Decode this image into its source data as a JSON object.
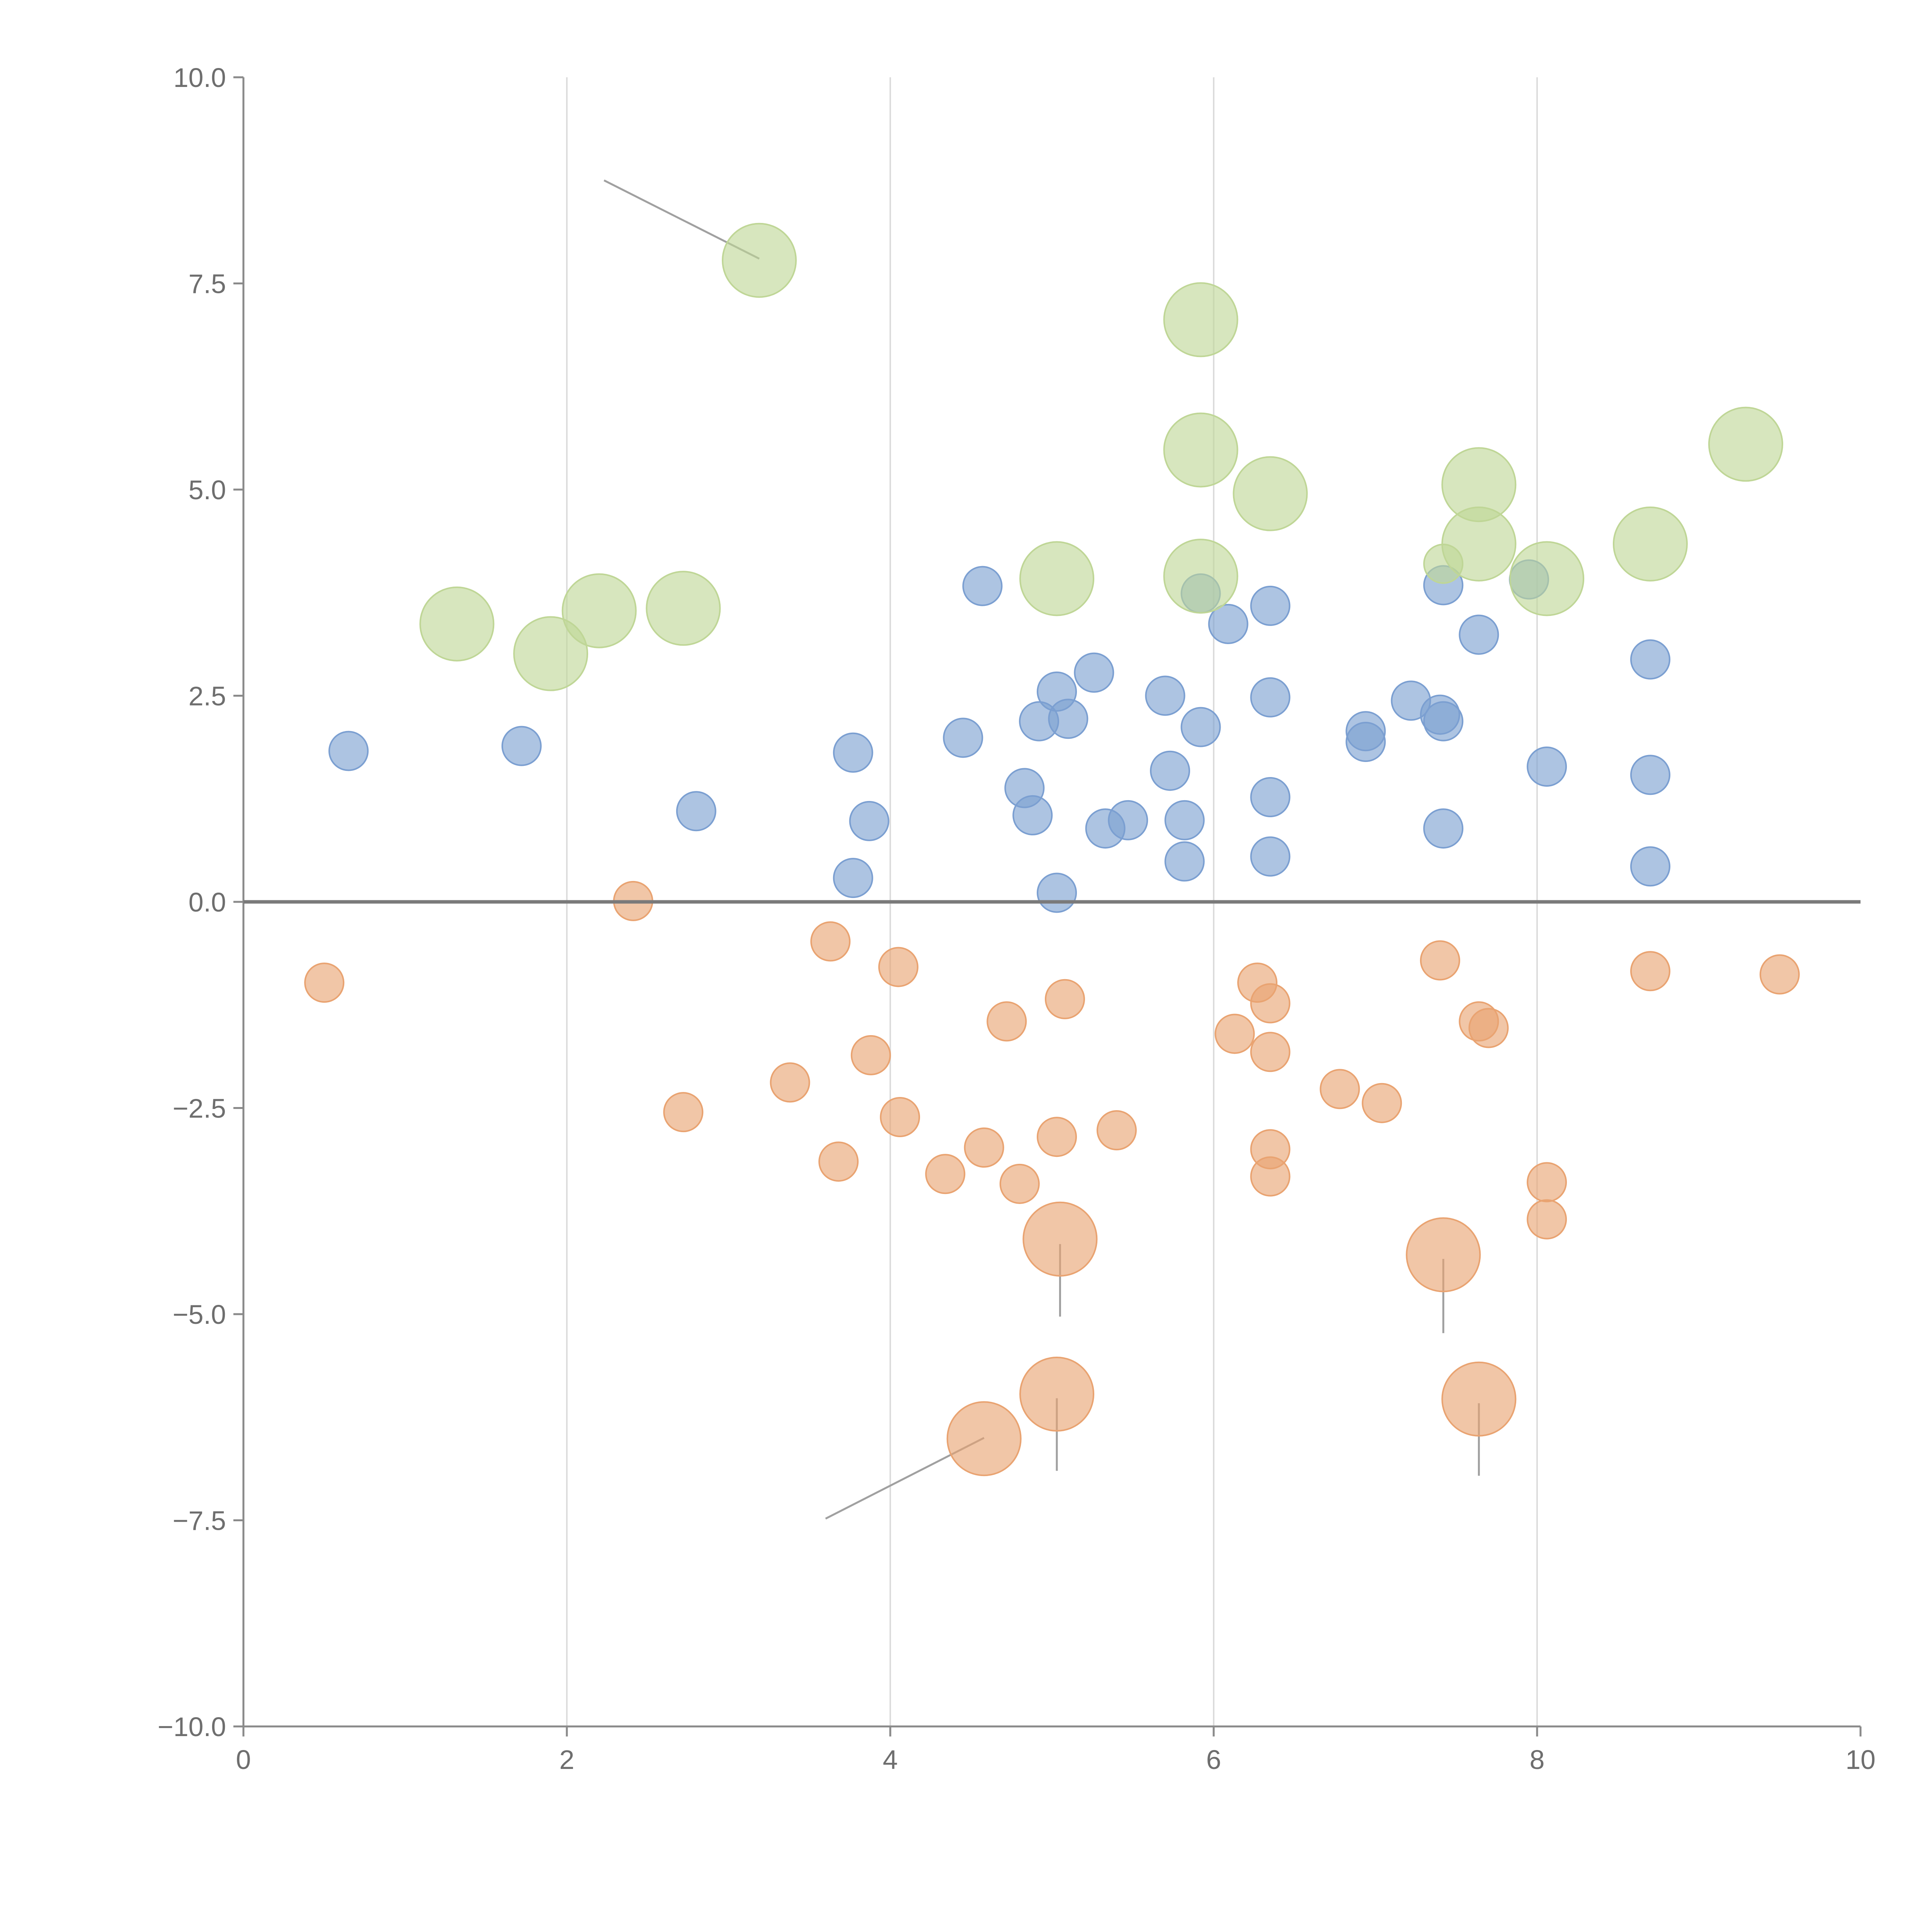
{
  "chart_data": {
    "type": "scatter",
    "title": "",
    "xlabel": "",
    "ylabel": "",
    "xlim": [
      0,
      10
    ],
    "ylim": [
      -10,
      10
    ],
    "grid": "vertical",
    "x_ticks": [
      "0",
      "2",
      "4",
      "6",
      "8",
      "10"
    ],
    "y_ticks": [
      "10.0",
      "7.5",
      "5.0",
      "2.5",
      "0.0",
      "−2.5",
      "−5.0",
      "−7.5",
      "−10.0"
    ],
    "series": [
      {
        "name": "blue",
        "color": "#7b9fd1",
        "points": [
          {
            "x": 0.65,
            "y": 1.83
          },
          {
            "x": 1.72,
            "y": 1.89
          },
          {
            "x": 2.8,
            "y": 1.1
          },
          {
            "x": 3.77,
            "y": 1.81
          },
          {
            "x": 3.87,
            "y": 0.98
          },
          {
            "x": 3.77,
            "y": 0.29
          },
          {
            "x": 4.45,
            "y": 1.99
          },
          {
            "x": 4.57,
            "y": 3.83
          },
          {
            "x": 4.83,
            "y": 1.38
          },
          {
            "x": 4.88,
            "y": 1.05
          },
          {
            "x": 4.92,
            "y": 2.19
          },
          {
            "x": 5.03,
            "y": 2.55
          },
          {
            "x": 5.1,
            "y": 2.22
          },
          {
            "x": 5.03,
            "y": 0.11
          },
          {
            "x": 5.26,
            "y": 2.78
          },
          {
            "x": 5.33,
            "y": 0.89
          },
          {
            "x": 5.47,
            "y": 0.99
          },
          {
            "x": 5.7,
            "y": 2.5
          },
          {
            "x": 5.73,
            "y": 1.59
          },
          {
            "x": 5.82,
            "y": 0.99
          },
          {
            "x": 5.82,
            "y": 0.49
          },
          {
            "x": 5.92,
            "y": 3.74
          },
          {
            "x": 5.92,
            "y": 2.12
          },
          {
            "x": 6.09,
            "y": 3.37
          },
          {
            "x": 6.35,
            "y": 3.59
          },
          {
            "x": 6.35,
            "y": 2.48
          },
          {
            "x": 6.35,
            "y": 1.27
          },
          {
            "x": 6.35,
            "y": 0.55
          },
          {
            "x": 6.94,
            "y": 2.07
          },
          {
            "x": 6.94,
            "y": 1.94
          },
          {
            "x": 7.22,
            "y": 2.44
          },
          {
            "x": 7.4,
            "y": 2.27
          },
          {
            "x": 7.42,
            "y": 2.19
          },
          {
            "x": 7.42,
            "y": 3.84
          },
          {
            "x": 7.42,
            "y": 0.89
          },
          {
            "x": 7.64,
            "y": 3.24
          },
          {
            "x": 7.95,
            "y": 3.91
          },
          {
            "x": 8.06,
            "y": 1.64
          },
          {
            "x": 8.7,
            "y": 2.94
          },
          {
            "x": 8.7,
            "y": 1.54
          },
          {
            "x": 8.7,
            "y": 0.43
          }
        ]
      },
      {
        "name": "orange",
        "color": "#e9a371",
        "points": [
          {
            "x": 0.5,
            "y": -0.98
          },
          {
            "x": 2.41,
            "y": 0.01
          },
          {
            "x": 2.72,
            "y": -2.55
          },
          {
            "x": 3.38,
            "y": -2.19
          },
          {
            "x": 3.63,
            "y": -0.48
          },
          {
            "x": 3.68,
            "y": -3.15
          },
          {
            "x": 3.88,
            "y": -1.86
          },
          {
            "x": 4.05,
            "y": -0.79
          },
          {
            "x": 4.06,
            "y": -2.61
          },
          {
            "x": 4.34,
            "y": -3.3
          },
          {
            "x": 4.58,
            "y": -2.98
          },
          {
            "x": 4.72,
            "y": -1.45
          },
          {
            "x": 4.8,
            "y": -3.42
          },
          {
            "x": 5.03,
            "y": -2.85
          },
          {
            "x": 5.08,
            "y": -1.18
          },
          {
            "x": 5.4,
            "y": -2.77
          },
          {
            "x": 6.13,
            "y": -1.6
          },
          {
            "x": 6.27,
            "y": -0.98
          },
          {
            "x": 6.35,
            "y": -1.23
          },
          {
            "x": 6.35,
            "y": -1.82
          },
          {
            "x": 6.35,
            "y": -3.0
          },
          {
            "x": 6.35,
            "y": -3.33
          },
          {
            "x": 6.78,
            "y": -2.27
          },
          {
            "x": 7.04,
            "y": -2.44
          },
          {
            "x": 7.4,
            "y": -0.71
          },
          {
            "x": 7.64,
            "y": -1.45
          },
          {
            "x": 7.7,
            "y": -1.53
          },
          {
            "x": 8.06,
            "y": -3.4
          },
          {
            "x": 8.06,
            "y": -3.85
          },
          {
            "x": 8.7,
            "y": -0.84
          },
          {
            "x": 9.5,
            "y": -0.88
          },
          {
            "x": 5.05,
            "y": -4.09,
            "size": "large"
          },
          {
            "x": 7.42,
            "y": -4.28,
            "size": "large"
          },
          {
            "x": 5.03,
            "y": -5.97,
            "size": "large"
          },
          {
            "x": 7.64,
            "y": -6.03,
            "size": "large"
          },
          {
            "x": 4.58,
            "y": -6.51,
            "size": "large"
          }
        ]
      },
      {
        "name": "green",
        "color": "#bfd696",
        "points": [
          {
            "x": 1.32,
            "y": 3.37,
            "size": "large"
          },
          {
            "x": 1.9,
            "y": 3.01,
            "size": "large"
          },
          {
            "x": 2.2,
            "y": 3.53,
            "size": "large"
          },
          {
            "x": 2.72,
            "y": 3.56,
            "size": "large"
          },
          {
            "x": 3.19,
            "y": 7.78,
            "size": "large"
          },
          {
            "x": 5.03,
            "y": 3.92,
            "size": "large"
          },
          {
            "x": 5.92,
            "y": 7.06,
            "size": "large"
          },
          {
            "x": 5.92,
            "y": 5.48,
            "size": "large"
          },
          {
            "x": 5.92,
            "y": 3.95,
            "size": "large"
          },
          {
            "x": 6.35,
            "y": 4.95,
            "size": "large"
          },
          {
            "x": 7.64,
            "y": 5.06,
            "size": "large"
          },
          {
            "x": 7.64,
            "y": 4.34,
            "size": "large"
          },
          {
            "x": 8.06,
            "y": 3.92,
            "size": "large"
          },
          {
            "x": 8.7,
            "y": 4.34,
            "size": "large"
          },
          {
            "x": 9.29,
            "y": 5.55,
            "size": "large"
          },
          {
            "x": 7.42,
            "y": 4.1
          }
        ]
      }
    ],
    "annotation_lines": [
      {
        "from": [
          3.19,
          7.8
        ],
        "to": [
          2.23,
          8.75
        ],
        "color": "#a0a0a0"
      },
      {
        "from": [
          4.58,
          -6.5
        ],
        "to": [
          3.6,
          -7.48
        ],
        "color": "#a0a0a0"
      },
      {
        "from": [
          5.05,
          -4.15
        ],
        "to": [
          5.05,
          -5.03
        ],
        "color": "#a0a0a0"
      },
      {
        "from": [
          7.42,
          -4.33
        ],
        "to": [
          7.42,
          -5.23
        ],
        "color": "#a0a0a0"
      },
      {
        "from": [
          5.03,
          -6.02
        ],
        "to": [
          5.03,
          -6.9
        ],
        "color": "#a0a0a0"
      },
      {
        "from": [
          7.64,
          -6.08
        ],
        "to": [
          7.64,
          -6.96
        ],
        "color": "#a0a0a0"
      }
    ]
  }
}
